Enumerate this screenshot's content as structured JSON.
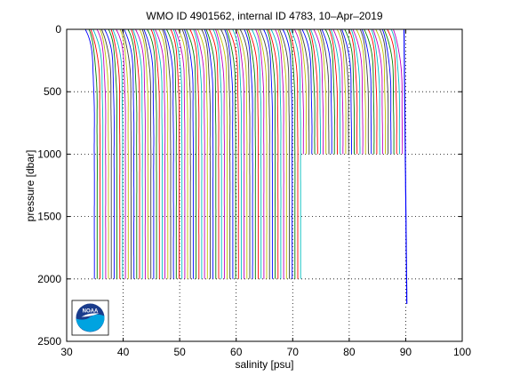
{
  "chart_data": {
    "type": "line",
    "title": "WMO ID 4901562, internal ID 4783, 10–Apr–2019",
    "xlabel": "salinity [psu]",
    "ylabel": "pressure [dbar]",
    "xlim": [
      30,
      100
    ],
    "ylim": [
      0,
      2500
    ],
    "y_reversed": true,
    "xticks": [
      30,
      40,
      50,
      60,
      70,
      80,
      90,
      100
    ],
    "yticks": [
      0,
      500,
      1000,
      1500,
      2000,
      2500
    ],
    "grid": true,
    "grid_style": "dotted",
    "series_description": "Waterfall of successive salinity profiles, each offset by about 0.5 psu from the previous one",
    "waterfall": {
      "profile_count": 110,
      "first_profile_deep_salinity": 34.9,
      "offset_per_profile_psu": 0.5,
      "full_depth_profile_count": 74,
      "full_depth_max_pressure": 2000,
      "short_profile_max_pressure": 1000,
      "surface_salinity_drop_psu": 1.6,
      "line_colors": [
        "#0000ff",
        "#008000",
        "#ff0000",
        "#00bfbf",
        "#bf00bf",
        "#bfbf00",
        "#404040"
      ]
    },
    "separate_profile": {
      "color": "#0000ff",
      "salinity_surface": 89.7,
      "salinity_bottom": 90.2,
      "max_pressure": 2200
    },
    "logo": {
      "text": "NOAA",
      "colors": [
        "#1a3c8c",
        "#00a3e0",
        "#ffffff"
      ]
    }
  }
}
